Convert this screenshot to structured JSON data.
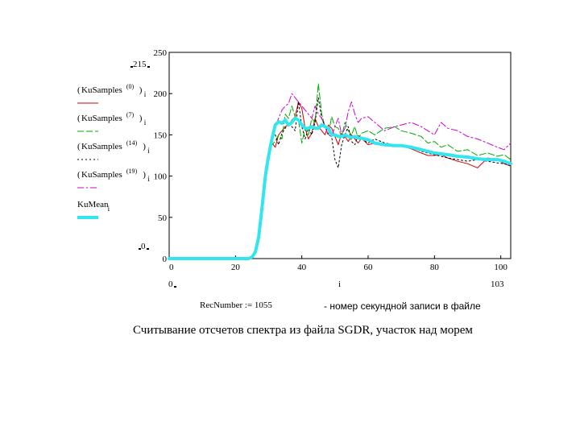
{
  "chart_data": {
    "type": "line",
    "x_var": "i",
    "xlim": [
      0,
      103
    ],
    "ylim": [
      0,
      250
    ],
    "x_ticks": [
      0,
      20,
      40,
      60,
      80,
      100
    ],
    "y_ticks": [
      0,
      50,
      100,
      150,
      200,
      250
    ],
    "x_limit_labels": {
      "low": "0",
      "high": "103"
    },
    "y_limit_labels": {
      "low": "0",
      "high": "215"
    },
    "grid": false,
    "series": [
      {
        "name": "KuSamples(0)",
        "expr": "KuSamples",
        "sup": "(0)",
        "sub": "i",
        "color": "#cc0000",
        "dash": "none",
        "width": 1,
        "x": [
          0,
          5,
          10,
          15,
          20,
          24,
          25,
          26,
          27,
          28,
          29,
          30,
          31,
          32,
          33,
          34,
          35,
          36,
          37,
          38,
          39,
          40,
          41,
          42,
          43,
          44,
          45,
          46,
          47,
          48,
          49,
          50,
          51,
          52,
          53,
          54,
          55,
          56,
          57,
          58,
          60,
          62,
          65,
          68,
          70,
          73,
          76,
          78,
          80,
          82,
          84,
          87,
          90,
          93,
          96,
          99,
          101,
          103
        ],
        "values": [
          0,
          0,
          0,
          0,
          0,
          0,
          2,
          8,
          25,
          60,
          100,
          125,
          140,
          135,
          150,
          155,
          160,
          162,
          168,
          172,
          190,
          182,
          158,
          145,
          152,
          170,
          160,
          155,
          150,
          162,
          158,
          148,
          138,
          152,
          148,
          142,
          150,
          145,
          140,
          146,
          138,
          140,
          138,
          136,
          137,
          133,
          128,
          125,
          125,
          126,
          122,
          118,
          115,
          110,
          122,
          120,
          115,
          112
        ]
      },
      {
        "name": "KuSamples(7)",
        "expr": "KuSamples",
        "sup": "(7)",
        "sub": "i",
        "color": "#00aa00",
        "dash": "8,3",
        "width": 1,
        "x": [
          0,
          5,
          10,
          15,
          20,
          24,
          25,
          26,
          27,
          28,
          29,
          30,
          31,
          32,
          33,
          34,
          35,
          36,
          37,
          38,
          39,
          40,
          41,
          42,
          43,
          44,
          45,
          46,
          47,
          48,
          49,
          50,
          51,
          52,
          53,
          54,
          55,
          56,
          57,
          58,
          60,
          62,
          65,
          68,
          70,
          73,
          76,
          78,
          80,
          82,
          84,
          87,
          90,
          93,
          96,
          99,
          101,
          103
        ],
        "values": [
          0,
          0,
          0,
          0,
          0,
          0,
          3,
          10,
          30,
          70,
          110,
          130,
          138,
          142,
          150,
          145,
          175,
          170,
          185,
          172,
          168,
          140,
          158,
          150,
          170,
          165,
          212,
          175,
          160,
          150,
          172,
          160,
          158,
          148,
          165,
          155,
          150,
          160,
          145,
          152,
          155,
          150,
          158,
          160,
          155,
          152,
          148,
          140,
          142,
          135,
          138,
          130,
          132,
          125,
          128,
          124,
          126,
          120
        ]
      },
      {
        "name": "KuSamples(14)",
        "expr": "KuSamples",
        "sup": "(14)",
        "sub": "i",
        "color": "#000000",
        "dash": "2,3",
        "width": 1,
        "x": [
          0,
          5,
          10,
          15,
          20,
          24,
          25,
          26,
          27,
          28,
          29,
          30,
          31,
          32,
          33,
          34,
          35,
          36,
          37,
          38,
          39,
          40,
          41,
          42,
          43,
          44,
          45,
          46,
          47,
          48,
          49,
          50,
          51,
          52,
          53,
          54,
          55,
          56,
          57,
          58,
          60,
          62,
          65,
          68,
          70,
          73,
          76,
          78,
          80,
          82,
          84,
          87,
          90,
          93,
          96,
          99,
          101,
          103
        ],
        "values": [
          0,
          0,
          0,
          0,
          0,
          0,
          1,
          6,
          22,
          55,
          95,
          120,
          145,
          150,
          138,
          152,
          158,
          165,
          160,
          155,
          190,
          160,
          145,
          158,
          150,
          165,
          195,
          170,
          160,
          150,
          148,
          120,
          110,
          138,
          150,
          160,
          142,
          138,
          150,
          145,
          140,
          145,
          140,
          138,
          137,
          135,
          130,
          128,
          126,
          124,
          122,
          120,
          118,
          120,
          118,
          116,
          115,
          113
        ]
      },
      {
        "name": "KuSamples(19)",
        "expr": "KuSamples",
        "sup": "(19)",
        "sub": "i",
        "color": "#cc00cc",
        "dash": "8,3,2,3",
        "width": 1,
        "x": [
          0,
          5,
          10,
          15,
          20,
          24,
          25,
          26,
          27,
          28,
          29,
          30,
          31,
          32,
          33,
          34,
          35,
          36,
          37,
          38,
          39,
          40,
          41,
          42,
          43,
          44,
          45,
          46,
          47,
          48,
          49,
          50,
          51,
          52,
          53,
          54,
          55,
          56,
          57,
          58,
          60,
          62,
          65,
          68,
          70,
          73,
          76,
          78,
          80,
          82,
          84,
          87,
          90,
          93,
          96,
          99,
          101,
          103
        ],
        "values": [
          0,
          0,
          0,
          0,
          0,
          0,
          2,
          9,
          28,
          65,
          105,
          128,
          150,
          160,
          170,
          180,
          185,
          188,
          200,
          195,
          190,
          185,
          180,
          175,
          170,
          185,
          175,
          170,
          160,
          150,
          148,
          160,
          170,
          150,
          158,
          178,
          190,
          175,
          165,
          170,
          172,
          165,
          155,
          160,
          162,
          165,
          160,
          155,
          150,
          165,
          158,
          155,
          148,
          145,
          140,
          135,
          132,
          140
        ]
      },
      {
        "name": "KuMean",
        "expr": "KuMean",
        "sup": "",
        "sub": "i",
        "color": "#33e5ee",
        "dash": "none",
        "width": 4,
        "x": [
          0,
          10,
          20,
          24,
          25,
          26,
          27,
          28,
          29,
          30,
          31,
          32,
          33,
          34,
          35,
          36,
          37,
          38,
          39,
          40,
          41,
          42,
          43,
          44,
          45,
          46,
          47,
          48,
          49,
          50,
          51,
          52,
          53,
          54,
          55,
          56,
          57,
          58,
          60,
          62,
          65,
          68,
          70,
          73,
          76,
          78,
          80,
          82,
          84,
          87,
          90,
          93,
          96,
          99,
          101,
          103
        ],
        "values": [
          0,
          0,
          0,
          0,
          2,
          8,
          26,
          62,
          100,
          125,
          145,
          162,
          166,
          164,
          168,
          162,
          165,
          170,
          168,
          162,
          158,
          158,
          160,
          158,
          158,
          162,
          160,
          158,
          150,
          150,
          148,
          148,
          150,
          148,
          147,
          148,
          146,
          146,
          144,
          140,
          138,
          137,
          137,
          135,
          132,
          130,
          128,
          127,
          126,
          124,
          123,
          121,
          120,
          120,
          118,
          115
        ]
      }
    ]
  },
  "recnumber": "RecNumber := 1055",
  "rec_note": "- номер секундной записи в файле",
  "caption": "Считывание отсчетов спектра из файла SGDR, участок над морем"
}
